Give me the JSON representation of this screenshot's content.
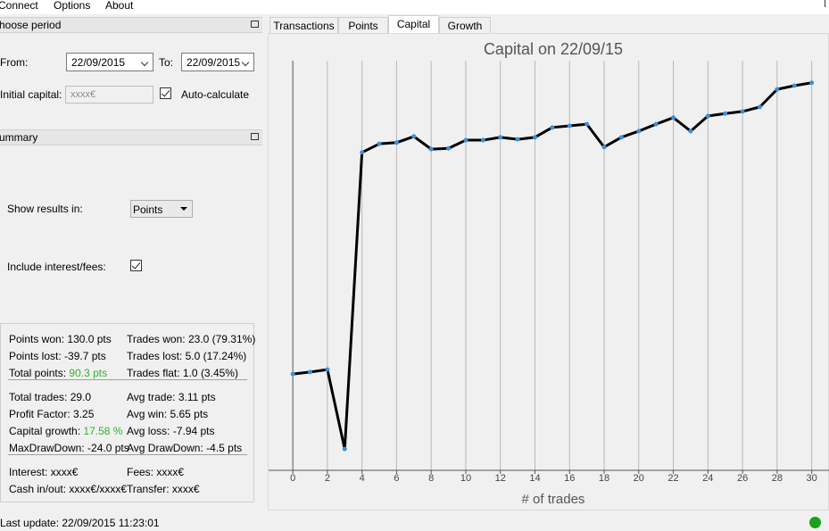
{
  "menu": [
    "Connect",
    "Options",
    "About"
  ],
  "period": {
    "header": "hoose period",
    "from_label": "From:",
    "from_date": "22/09/2015",
    "to_label": "To:",
    "to_date": "22/09/2015",
    "capital_label": "Initial capital:",
    "capital_value": "xxxx€",
    "auto_label": "Auto-calculate"
  },
  "summary": {
    "header": "ummary",
    "results_label": "Show results in:",
    "results_value": "Points",
    "interest_label": "Include interest/fees:",
    "stats": [
      [
        [
          {
            "label": "Points won:",
            "value": "130.0 pts"
          },
          {
            "label": "Trades won:",
            "value": "23.0 (79.31%)"
          }
        ],
        [
          {
            "label": "Points lost:",
            "value": "-39.7 pts"
          },
          {
            "label": "Trades lost:",
            "value": "5.0 (17.24%)"
          }
        ],
        [
          {
            "label": "Total points:",
            "value": "90.3 pts",
            "color": "#33b033"
          },
          {
            "label": "Trades flat:",
            "value": "1.0 (3.45%)"
          }
        ]
      ],
      [
        [
          {
            "label": "Total trades:",
            "value": "29.0"
          },
          {
            "label": "Avg trade:",
            "value": "3.11 pts"
          }
        ],
        [
          {
            "label": "Profit Factor:",
            "value": "3.25"
          },
          {
            "label": "Avg win:",
            "value": "5.65 pts"
          }
        ],
        [
          {
            "label": "Capital growth:",
            "value": "17.58 %",
            "color": "#33b033"
          },
          {
            "label": "Avg loss:",
            "value": "-7.94 pts"
          }
        ],
        [
          {
            "label": "MaxDrawDown:",
            "value": "-24.0 pts"
          },
          {
            "label": "Avg DrawDown:",
            "value": "-4.5 pts"
          }
        ]
      ],
      [
        [
          {
            "label": "Interest:",
            "value": "xxxx€"
          },
          {
            "label": "Fees:",
            "value": "xxxx€"
          }
        ],
        [
          {
            "label": "Cash in/out:",
            "value": "xxxx€/xxxx€"
          },
          {
            "label": "Transfer:",
            "value": "xxxx€"
          }
        ]
      ]
    ]
  },
  "last_update": "Last update: 22/09/2015 11:23:01",
  "tabs": {
    "items": [
      "Transactions",
      "Points",
      "Capital",
      "Growth"
    ],
    "selected": 2
  },
  "chart_data": {
    "type": "line",
    "title": "Capital on 22/09/15",
    "x_label": "# of trades",
    "x": [
      0,
      1,
      2,
      3,
      4,
      5,
      6,
      7,
      8,
      9,
      10,
      11,
      12,
      13,
      14,
      15,
      16,
      17,
      18,
      19,
      20,
      21,
      22,
      23,
      24,
      25,
      26,
      27,
      28,
      29,
      30
    ],
    "series": [
      {
        "name": "Capital",
        "color": "#000000",
        "marker_color": "#3b8fdc",
        "values": [
          23.5,
          24.0,
          24.6,
          5.2,
          77.6,
          79.7,
          80.0,
          81.5,
          78.4,
          78.6,
          80.6,
          80.6,
          81.3,
          80.8,
          81.3,
          83.7,
          84.1,
          84.5,
          78.9,
          81.3,
          82.8,
          84.5,
          86.1,
          82.8,
          86.5,
          87.1,
          87.6,
          88.7,
          93.0,
          93.9,
          94.6
        ]
      }
    ],
    "xlim": [
      -1.4,
      31
    ],
    "ylim": [
      0,
      100
    ],
    "xticks": [
      0,
      2,
      4,
      6,
      8,
      10,
      12,
      14,
      16,
      18,
      20,
      22,
      24,
      26,
      28,
      30
    ],
    "grid": true
  }
}
